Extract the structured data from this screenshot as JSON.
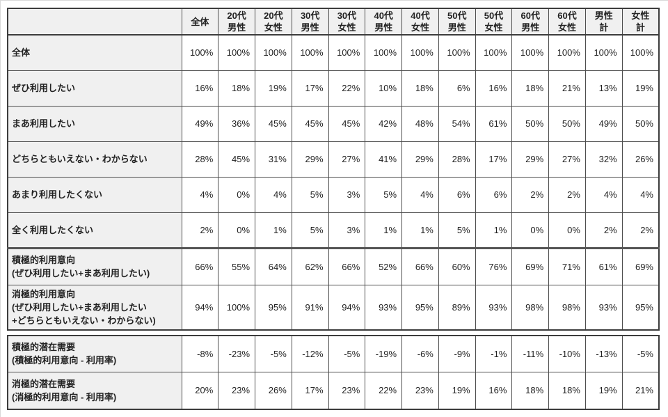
{
  "colors": {
    "outer_border": "#3c3c3c",
    "cell_border": "#4d4d4d",
    "thick_separator": "#565656",
    "header_bg": "#f0f0f0",
    "cell_bg": "#ffffff",
    "text": "#222222"
  },
  "chart_data": {
    "type": "table",
    "title": "",
    "corner_label": "",
    "unit": "percent",
    "columns": [
      "全体",
      "20代\n男性",
      "20代\n女性",
      "30代\n男性",
      "30代\n女性",
      "40代\n男性",
      "40代\n女性",
      "50代\n男性",
      "50代\n女性",
      "60代\n男性",
      "60代\n女性",
      "男性\n計",
      "女性\n計"
    ],
    "sections": [
      {
        "row_groups": [
          [
            {
              "label": "全体",
              "sublabel": "",
              "values": [
                "100%",
                "100%",
                "100%",
                "100%",
                "100%",
                "100%",
                "100%",
                "100%",
                "100%",
                "100%",
                "100%",
                "100%",
                "100%"
              ]
            },
            {
              "label": "ぜひ利用したい",
              "sublabel": "",
              "values": [
                "16%",
                "18%",
                "19%",
                "17%",
                "22%",
                "10%",
                "18%",
                "6%",
                "16%",
                "18%",
                "21%",
                "13%",
                "19%"
              ]
            },
            {
              "label": "まあ利用したい",
              "sublabel": "",
              "values": [
                "49%",
                "36%",
                "45%",
                "45%",
                "45%",
                "42%",
                "48%",
                "54%",
                "61%",
                "50%",
                "50%",
                "49%",
                "50%"
              ]
            },
            {
              "label": "どちらともいえない・わからない",
              "sublabel": "",
              "values": [
                "28%",
                "45%",
                "31%",
                "29%",
                "27%",
                "41%",
                "29%",
                "28%",
                "17%",
                "29%",
                "27%",
                "32%",
                "26%"
              ]
            },
            {
              "label": "あまり利用したくない",
              "sublabel": "",
              "values": [
                "4%",
                "0%",
                "4%",
                "5%",
                "3%",
                "5%",
                "4%",
                "6%",
                "6%",
                "2%",
                "2%",
                "4%",
                "4%"
              ]
            },
            {
              "label": "全く利用したくない",
              "sublabel": "",
              "values": [
                "2%",
                "0%",
                "1%",
                "5%",
                "3%",
                "1%",
                "1%",
                "5%",
                "1%",
                "0%",
                "0%",
                "2%",
                "2%"
              ]
            }
          ],
          [
            {
              "label": "積極的利用意向",
              "sublabel": " (ぜひ利用したい+まあ利用したい)",
              "values": [
                "66%",
                "55%",
                "64%",
                "62%",
                "66%",
                "52%",
                "66%",
                "60%",
                "76%",
                "69%",
                "71%",
                "61%",
                "69%"
              ]
            },
            {
              "label": "消極的利用意向",
              "sublabel": " (ぜひ利用したい+まあ利用したい\n  +どちらともいえない・わからない)",
              "values": [
                "94%",
                "100%",
                "95%",
                "91%",
                "94%",
                "93%",
                "95%",
                "89%",
                "93%",
                "98%",
                "98%",
                "93%",
                "95%"
              ]
            }
          ]
        ]
      },
      {
        "row_groups": [
          [
            {
              "label": "積極的潜在需要",
              "sublabel": " (積極的利用意向 - 利用率)",
              "values": [
                "-8%",
                "-23%",
                "-5%",
                "-12%",
                "-5%",
                "-19%",
                "-6%",
                "-9%",
                "-1%",
                "-11%",
                "-10%",
                "-13%",
                "-5%"
              ]
            },
            {
              "label": "消極的潜在需要",
              "sublabel": " (消極的利用意向 - 利用率)",
              "values": [
                "20%",
                "23%",
                "26%",
                "17%",
                "23%",
                "22%",
                "23%",
                "19%",
                "16%",
                "18%",
                "18%",
                "19%",
                "21%"
              ]
            }
          ]
        ]
      }
    ]
  }
}
